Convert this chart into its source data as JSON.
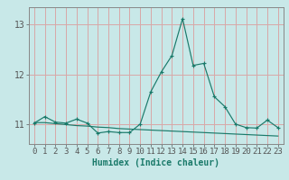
{
  "xlabel": "Humidex (Indice chaleur)",
  "background_color": "#c8e8e8",
  "grid_color": "#d8a8a8",
  "line_color": "#1a7a6a",
  "spine_color": "#888888",
  "x_values": [
    0,
    1,
    2,
    3,
    4,
    5,
    6,
    7,
    8,
    9,
    10,
    11,
    12,
    13,
    14,
    15,
    16,
    17,
    18,
    19,
    20,
    21,
    22,
    23
  ],
  "y_main": [
    11.02,
    11.15,
    11.04,
    11.02,
    11.1,
    11.02,
    10.82,
    10.85,
    10.83,
    10.83,
    11.0,
    11.65,
    12.05,
    12.38,
    13.12,
    12.18,
    12.22,
    11.55,
    11.35,
    11.0,
    10.93,
    10.92,
    11.08,
    10.93
  ],
  "y_trend": [
    11.03,
    11.03,
    11.01,
    10.99,
    10.97,
    10.96,
    10.94,
    10.93,
    10.91,
    10.9,
    10.89,
    10.88,
    10.87,
    10.86,
    10.85,
    10.84,
    10.83,
    10.82,
    10.81,
    10.8,
    10.79,
    10.78,
    10.77,
    10.76
  ],
  "ylim": [
    10.6,
    13.35
  ],
  "yticks": [
    11,
    12,
    13
  ],
  "xlim": [
    -0.5,
    23.5
  ],
  "tick_fontsize": 6.5,
  "label_fontsize": 7.0
}
